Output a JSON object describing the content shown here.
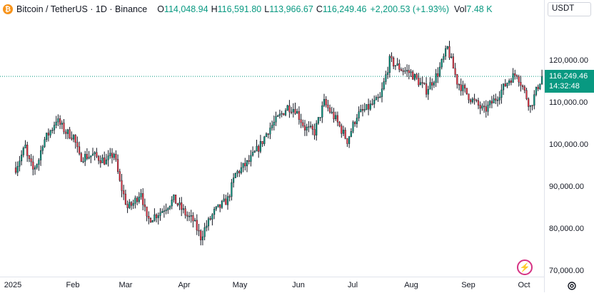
{
  "legend": {
    "symbol": "Bitcoin / TetherUS · 1D · Binance",
    "open_label": "O",
    "open": "114,048.94",
    "high_label": "H",
    "high": "116,591.80",
    "low_label": "L",
    "low": "113,966.67",
    "close_label": "C",
    "close": "116,249.46",
    "change": "+2,200.53 (+1.93%)",
    "volume_label": "Vol",
    "volume": "7.48 K"
  },
  "currency": "USDT",
  "last_price": {
    "value": "116,249.46",
    "countdown": "14:32:48"
  },
  "price_ticks": [
    "120,000.00",
    "110,000.00",
    "100,000.00",
    "90,000.00",
    "80,000.00",
    "70,000.00"
  ],
  "time_labels": [
    "2025",
    "Feb",
    "Mar",
    "Apr",
    "May",
    "Jun",
    "Jul",
    "Aug",
    "Sep",
    "Oct"
  ],
  "colors": {
    "up": "#089981",
    "down": "#f23645",
    "candle": "#131722",
    "accent": "#089981"
  },
  "icons": {
    "coin": "bitcoin-icon",
    "settings": "gear-icon",
    "flash": "lightning-icon"
  },
  "chart_data": {
    "type": "candlestick",
    "interval": "1D",
    "ylim": [
      70000,
      125000
    ],
    "grid": false,
    "points": [
      [
        "2025-01-01",
        94500
      ],
      [
        "2025-01-06",
        99500
      ],
      [
        "2025-01-07",
        97000
      ],
      [
        "2025-01-10",
        94000
      ],
      [
        "2025-01-13",
        96500
      ],
      [
        "2025-01-15",
        100500
      ],
      [
        "2025-01-20",
        104000
      ],
      [
        "2025-01-22",
        106000
      ],
      [
        "2025-01-27",
        103000
      ],
      [
        "2025-01-31",
        102000
      ],
      [
        "2025-02-03",
        97000
      ],
      [
        "2025-02-10",
        97500
      ],
      [
        "2025-02-17",
        96000
      ],
      [
        "2025-02-21",
        98000
      ],
      [
        "2025-02-24",
        91000
      ],
      [
        "2025-02-28",
        85000
      ],
      [
        "2025-03-03",
        86000
      ],
      [
        "2025-03-07",
        89000
      ],
      [
        "2025-03-10",
        82000
      ],
      [
        "2025-03-17",
        84000
      ],
      [
        "2025-03-24",
        87000
      ],
      [
        "2025-03-31",
        83000
      ],
      [
        "2025-04-03",
        82000
      ],
      [
        "2025-04-07",
        78000
      ],
      [
        "2025-04-09",
        80000
      ],
      [
        "2025-04-14",
        84000
      ],
      [
        "2025-04-21",
        87000
      ],
      [
        "2025-04-25",
        93000
      ],
      [
        "2025-05-02",
        96000
      ],
      [
        "2025-05-08",
        100000
      ],
      [
        "2025-05-12",
        103500
      ],
      [
        "2025-05-22",
        109000
      ],
      [
        "2025-05-26",
        108500
      ],
      [
        "2025-05-31",
        104000
      ],
      [
        "2025-06-05",
        103000
      ],
      [
        "2025-06-10",
        110000
      ],
      [
        "2025-06-16",
        106000
      ],
      [
        "2025-06-22",
        101000
      ],
      [
        "2025-06-27",
        107000
      ],
      [
        "2025-07-02",
        108500
      ],
      [
        "2025-07-09",
        111000
      ],
      [
        "2025-07-14",
        120000
      ],
      [
        "2025-07-20",
        118000
      ],
      [
        "2025-07-25",
        117000
      ],
      [
        "2025-08-02",
        113000
      ],
      [
        "2025-08-08",
        117000
      ],
      [
        "2025-08-13",
        123000
      ],
      [
        "2025-08-18",
        115000
      ],
      [
        "2025-08-25",
        111000
      ],
      [
        "2025-09-01",
        108000
      ],
      [
        "2025-09-07",
        111000
      ],
      [
        "2025-09-14",
        115500
      ],
      [
        "2025-09-18",
        117000
      ],
      [
        "2025-09-22",
        112500
      ],
      [
        "2025-09-25",
        109000
      ],
      [
        "2025-09-29",
        114000
      ],
      [
        "2025-10-01",
        116249.46
      ]
    ]
  }
}
